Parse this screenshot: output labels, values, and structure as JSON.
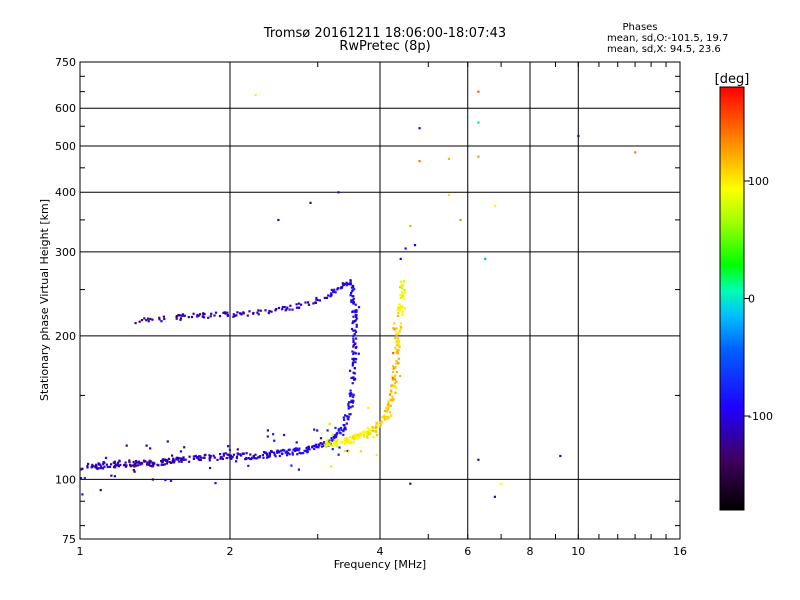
{
  "header": {
    "title": "Tromsø 20161211 18:06:00-18:07:43",
    "subtitle": "RwPretec (8p)"
  },
  "phase_info": {
    "heading": "Phases",
    "line_o": "mean, sd,O:-101.5, 19.7",
    "line_x": "mean, sd,X:  94.5, 23.6"
  },
  "colorbar": {
    "label": "[deg]",
    "range": [
      -180,
      180
    ],
    "ticks": [
      100,
      0,
      -100
    ],
    "tick_labels": [
      "100",
      "0",
      "-100"
    ]
  },
  "chart_data": {
    "type": "scatter",
    "xlabel": "Frequency [MHz]",
    "ylabel": "Stationary phase Virtual Height [km]",
    "xscale": "log",
    "yscale": "log",
    "xlim": [
      1,
      16
    ],
    "ylim": [
      75,
      750
    ],
    "xticks": [
      1,
      2,
      4,
      6,
      8,
      10,
      16
    ],
    "xtick_labels": [
      "1",
      "2",
      "4",
      "6",
      "8",
      "10",
      "16"
    ],
    "yticks": [
      75,
      100,
      200,
      300,
      400,
      500,
      600,
      750
    ],
    "ytick_labels": [
      "75",
      "100",
      "200",
      "300",
      "400",
      "500",
      "600",
      "750"
    ],
    "grid": true,
    "series": [
      {
        "mode": "O",
        "trace": [
          [
            1.0,
            106,
            -105
          ],
          [
            1.1,
            107,
            -110
          ],
          [
            1.2,
            108,
            -118
          ],
          [
            1.3,
            108,
            -122
          ],
          [
            1.4,
            108,
            -120
          ],
          [
            1.5,
            109,
            -115
          ],
          [
            1.6,
            110,
            -112
          ],
          [
            1.8,
            111,
            -110
          ],
          [
            2.0,
            112,
            -108
          ],
          [
            2.2,
            112,
            -105
          ],
          [
            2.4,
            113,
            -100
          ],
          [
            2.6,
            114,
            -98
          ],
          [
            2.8,
            115,
            -95
          ],
          [
            3.0,
            117,
            -92
          ],
          [
            3.2,
            121,
            -90
          ],
          [
            3.4,
            128,
            -88
          ],
          [
            3.5,
            145,
            -92
          ],
          [
            3.55,
            170,
            -95
          ],
          [
            3.55,
            200,
            -98
          ],
          [
            3.55,
            230,
            -100
          ],
          [
            3.5,
            258,
            -95
          ]
        ],
        "upper_trace": [
          [
            1.3,
            215,
            -125
          ],
          [
            1.5,
            218,
            -122
          ],
          [
            1.7,
            220,
            -120
          ],
          [
            1.9,
            222,
            -118
          ],
          [
            2.1,
            222,
            -115
          ],
          [
            2.4,
            225,
            -112
          ],
          [
            2.7,
            230,
            -108
          ],
          [
            3.0,
            238,
            -105
          ],
          [
            3.3,
            250,
            -100
          ],
          [
            3.5,
            262,
            -95
          ]
        ],
        "points": [
          [
            4.4,
            290,
            -95
          ],
          [
            4.5,
            305,
            -90
          ],
          [
            4.7,
            310,
            -95
          ],
          [
            6.5,
            290,
            -20
          ],
          [
            2.5,
            350,
            -105
          ],
          [
            2.9,
            380,
            -110
          ],
          [
            3.3,
            400,
            -105
          ],
          [
            4.8,
            545,
            -110
          ],
          [
            10.0,
            525,
            -120
          ],
          [
            9.2,
            112,
            -110
          ],
          [
            6.3,
            110,
            -120
          ],
          [
            6.8,
            92,
            -120
          ],
          [
            4.6,
            98,
            -130
          ],
          [
            1.1,
            95,
            -140
          ],
          [
            1.4,
            100,
            -150
          ],
          [
            6.3,
            560,
            -10
          ]
        ]
      },
      {
        "mode": "X",
        "trace": [
          [
            3.1,
            119,
            90
          ],
          [
            3.3,
            120,
            95
          ],
          [
            3.5,
            121,
            100
          ],
          [
            3.7,
            124,
            100
          ],
          [
            3.9,
            128,
            105
          ],
          [
            4.1,
            135,
            110
          ],
          [
            4.25,
            150,
            115
          ],
          [
            4.3,
            175,
            120
          ],
          [
            4.35,
            200,
            110
          ],
          [
            4.4,
            230,
            95
          ],
          [
            4.45,
            260,
            80
          ]
        ],
        "points": [
          [
            4.8,
            465,
            140
          ],
          [
            5.5,
            470,
            120
          ],
          [
            6.3,
            475,
            130
          ],
          [
            6.3,
            650,
            150
          ],
          [
            2.25,
            640,
            100
          ],
          [
            5.5,
            395,
            105
          ],
          [
            6.8,
            375,
            95
          ],
          [
            13.0,
            485,
            140
          ],
          [
            7.0,
            98,
            90
          ],
          [
            5.8,
            350,
            135
          ],
          [
            4.6,
            340,
            125
          ]
        ]
      }
    ]
  }
}
